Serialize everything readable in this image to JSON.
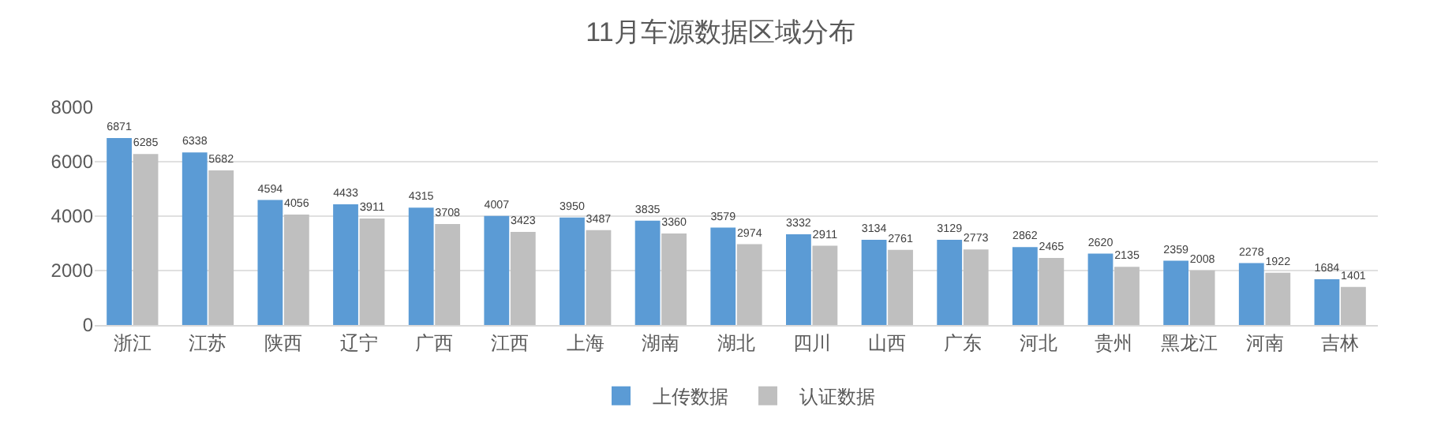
{
  "chart_data": {
    "type": "bar",
    "title": "11月车源数据区域分布",
    "categories": [
      "浙江",
      "江苏",
      "陕西",
      "辽宁",
      "广西",
      "江西",
      "上海",
      "湖南",
      "湖北",
      "四川",
      "山西",
      "广东",
      "河北",
      "贵州",
      "黑龙江",
      "河南",
      "吉林"
    ],
    "series": [
      {
        "name": "上传数据",
        "color": "#5b9bd5",
        "values": [
          6871,
          6338,
          4594,
          4433,
          4315,
          4007,
          3950,
          3835,
          3579,
          3332,
          3134,
          3129,
          2862,
          2620,
          2359,
          2278,
          1684
        ]
      },
      {
        "name": "认证数据",
        "color": "#bfbfbf",
        "values": [
          6285,
          5682,
          4056,
          3911,
          3708,
          3423,
          3487,
          3360,
          2974,
          2911,
          2761,
          2773,
          2465,
          2135,
          2008,
          1922,
          1401
        ]
      }
    ],
    "ylim": [
      0,
      8000
    ],
    "yticks": [
      0,
      2000,
      4000,
      6000,
      8000
    ],
    "grid": "y",
    "legend": "bottom",
    "data_labels": true
  }
}
